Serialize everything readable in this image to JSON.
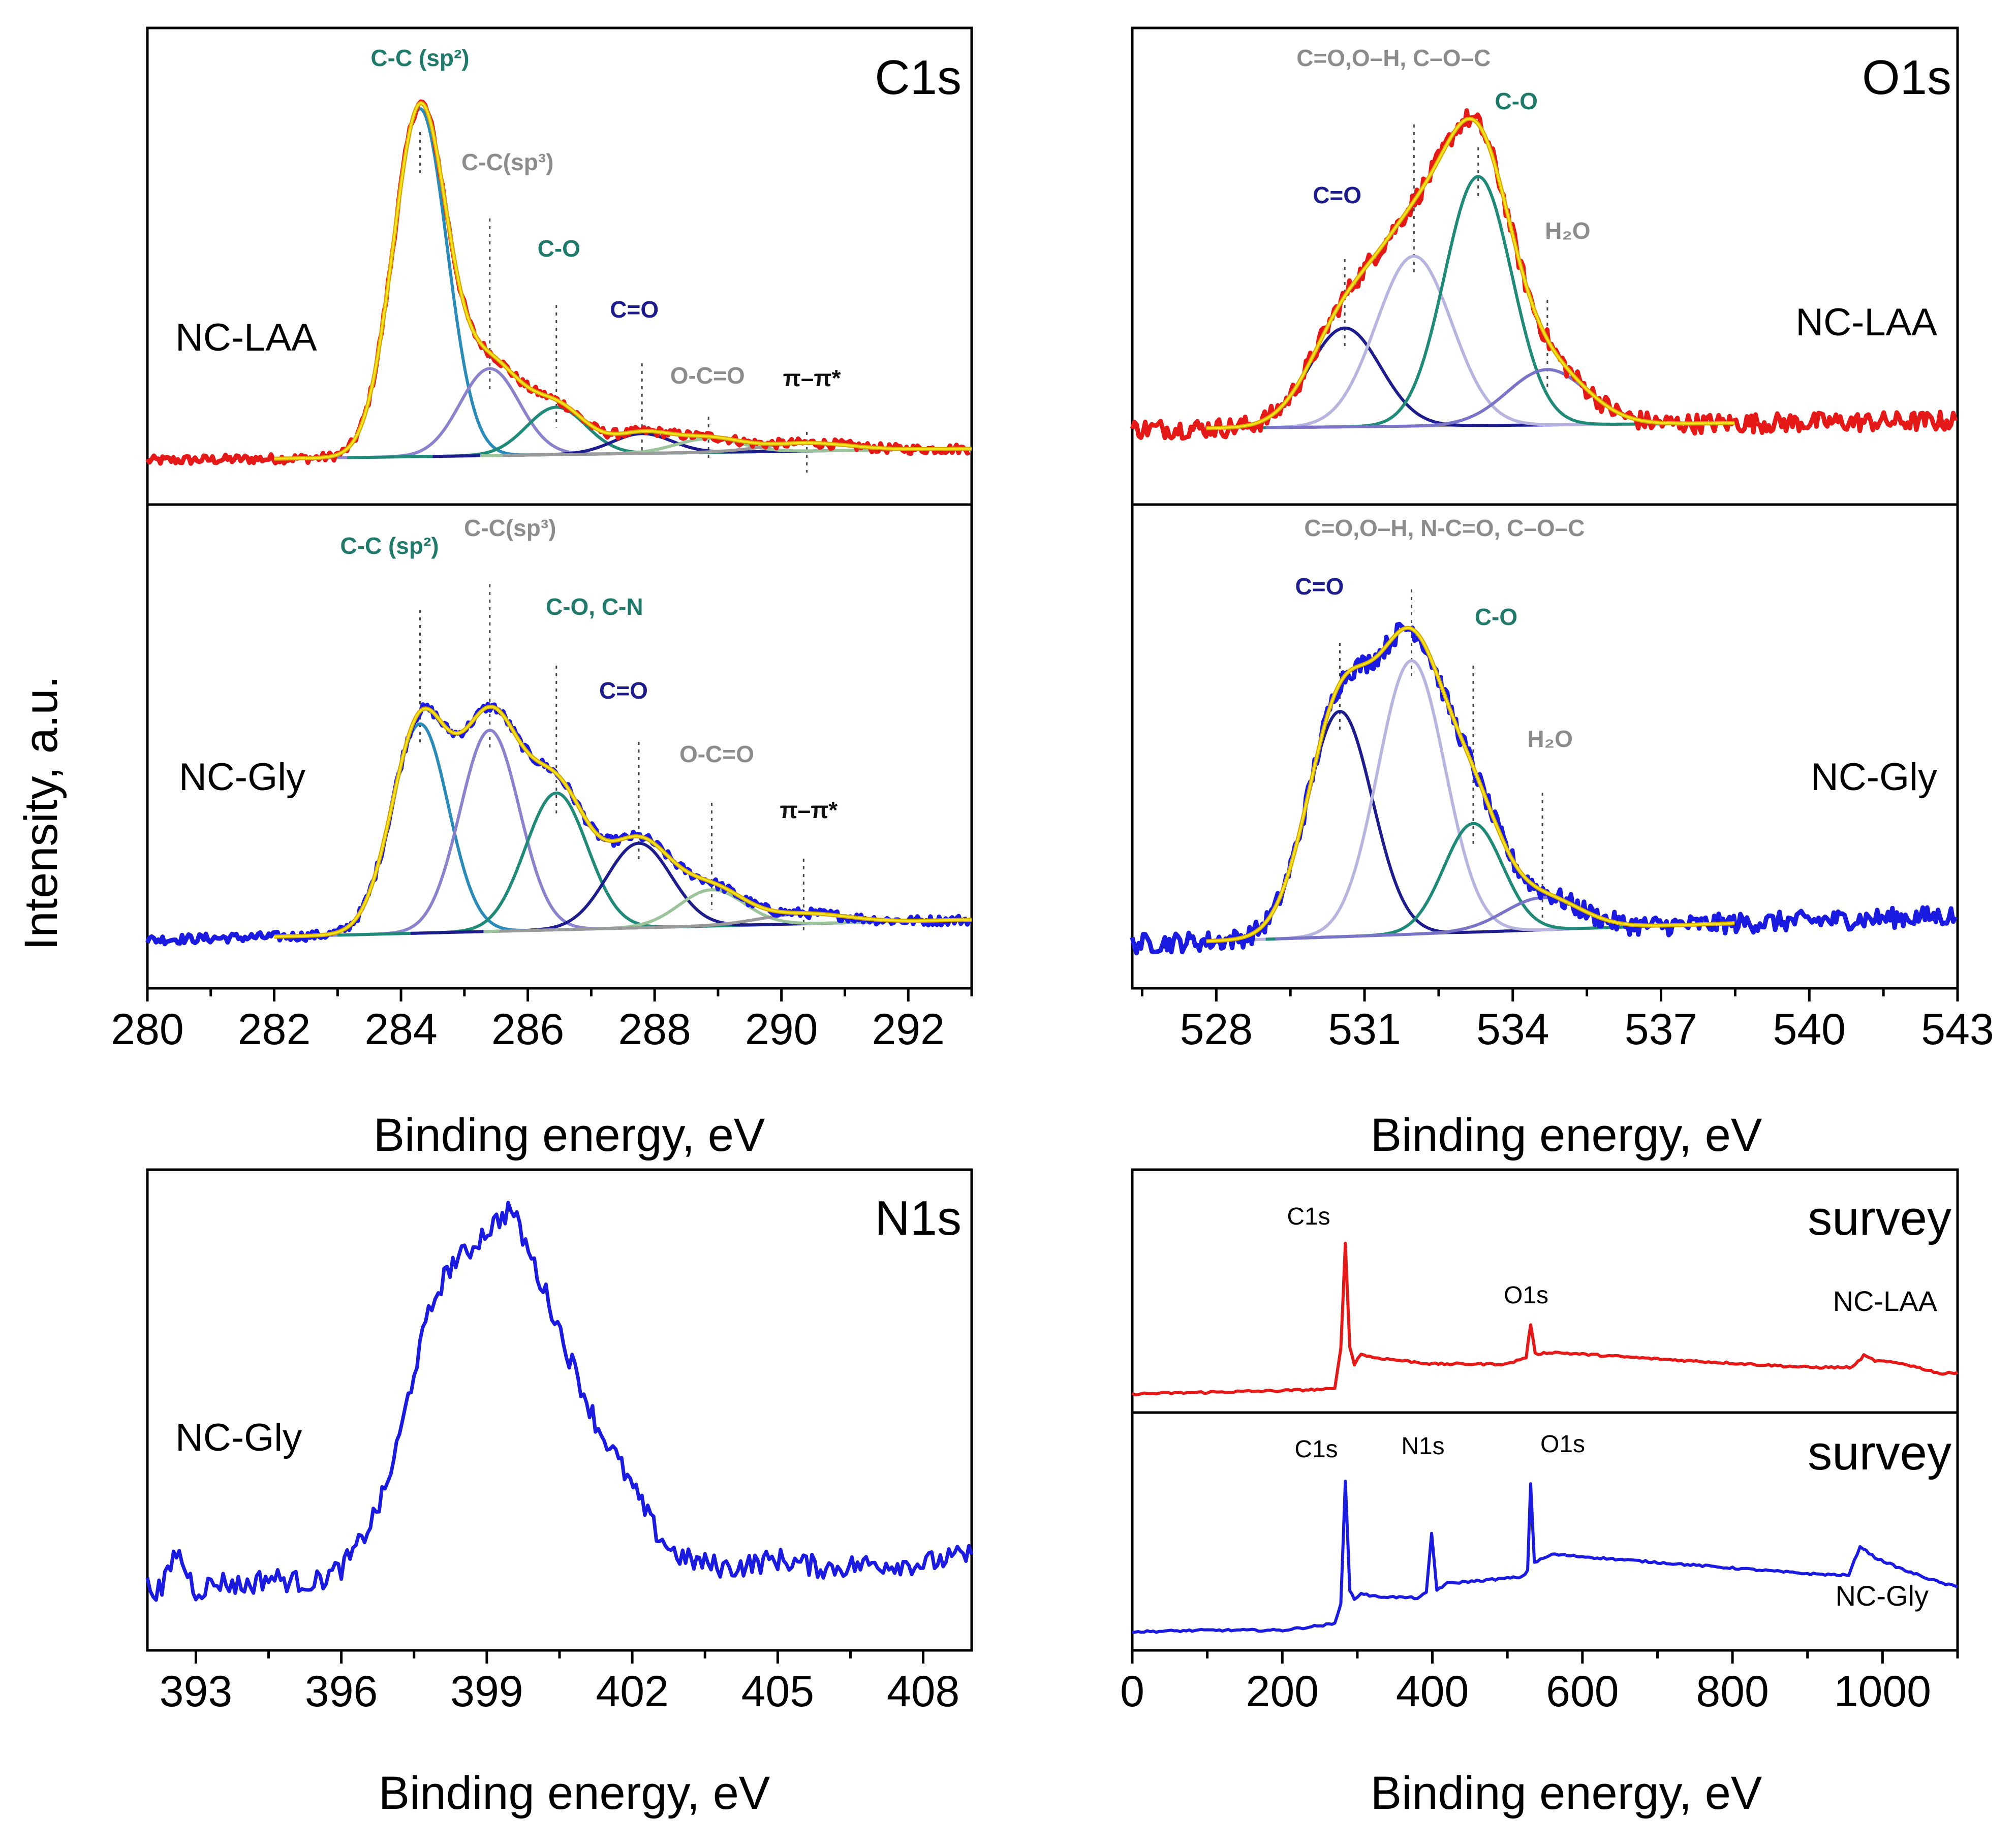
{
  "figure": {
    "ylabel": "Intensity, a.u.",
    "colors": {
      "laa": "#e61919",
      "gly": "#1a1ae0",
      "fit": "#f2e21c",
      "fit_outline": "#d6a400",
      "green_label": "#1f7a6a",
      "navy_label": "#1c1c8c",
      "gray_label": "#8c8c8c",
      "black_label": "#111111"
    }
  },
  "chart_data": [
    {
      "id": "c1s",
      "type": "line",
      "title": "C1s",
      "xlabel": "Binding energy, eV",
      "xlim": [
        280,
        293
      ],
      "xticks": [
        280,
        282,
        284,
        286,
        288,
        290,
        292
      ],
      "subplots": [
        {
          "sample": "NC-LAA",
          "data_color": "laa",
          "background": {
            "start": [
              280,
              0.06
            ],
            "end": [
              293,
              0.09
            ]
          },
          "components": [
            {
              "label": "C-C (sp²)",
              "center": 284.3,
              "fwhm": 1.0,
              "amplitude": 0.88,
              "color": "#2a8ab8",
              "label_color": "green_label"
            },
            {
              "label": "C-C(sp³)",
              "center": 285.4,
              "fwhm": 1.1,
              "amplitude": 0.22,
              "color": "#8a82cc",
              "label_color": "gray_label"
            },
            {
              "label": "C-O",
              "center": 286.45,
              "fwhm": 1.1,
              "amplitude": 0.12,
              "color": "#1f8a78",
              "label_color": "green_label"
            },
            {
              "label": "C=O",
              "center": 287.8,
              "fwhm": 1.1,
              "amplitude": 0.05,
              "color": "#1c1c8c",
              "label_color": "navy_label"
            },
            {
              "label": "O-C=O",
              "center": 288.85,
              "fwhm": 1.2,
              "amplitude": 0.035,
              "color": "#9cc49a",
              "label_color": "gray_label"
            },
            {
              "label": "π–π*",
              "center": 290.4,
              "fwhm": 1.6,
              "amplitude": 0.02,
              "color": "#9a9a9a",
              "label_color": "black_label"
            }
          ]
        },
        {
          "sample": "NC-Gly",
          "data_color": "gly",
          "background": {
            "start": [
              280,
              0.07
            ],
            "end": [
              293,
              0.12
            ]
          },
          "components": [
            {
              "label": "C-C (sp²)",
              "center": 284.3,
              "fwhm": 1.05,
              "amplitude": 0.52,
              "color": "#2a8ab8",
              "label_color": "green_label"
            },
            {
              "label": "C-C(sp³)",
              "center": 285.4,
              "fwhm": 1.1,
              "amplitude": 0.5,
              "color": "#8a82cc",
              "label_color": "gray_label"
            },
            {
              "label": "C-O, C-N",
              "center": 286.45,
              "fwhm": 1.15,
              "amplitude": 0.34,
              "color": "#1f8a78",
              "label_color": "green_label"
            },
            {
              "label": "C=O",
              "center": 287.75,
              "fwhm": 1.2,
              "amplitude": 0.21,
              "color": "#1c1c8c",
              "label_color": "navy_label"
            },
            {
              "label": "O-C=O",
              "center": 288.9,
              "fwhm": 1.2,
              "amplitude": 0.09,
              "color": "#9cc49a",
              "label_color": "gray_label"
            },
            {
              "label": "π–π*",
              "center": 290.35,
              "fwhm": 1.6,
              "amplitude": 0.025,
              "color": "#9a9a9a",
              "label_color": "black_label"
            }
          ]
        }
      ]
    },
    {
      "id": "o1s",
      "type": "line",
      "title": "O1s",
      "xlabel": "Binding energy, eV",
      "xlim": [
        526.3,
        543
      ],
      "xticks": [
        528,
        531,
        534,
        537,
        540,
        543
      ],
      "subplots": [
        {
          "sample": "NC-LAA",
          "data_color": "laa",
          "background": {
            "start": [
              526.3,
              0.14
            ],
            "end": [
              543,
              0.16
            ]
          },
          "components": [
            {
              "label": "C=O",
              "center": 530.6,
              "fwhm": 1.7,
              "amplitude": 0.25,
              "color": "#1c1c8c",
              "label_color": "navy_label"
            },
            {
              "label": "C=O,O–H, C–O–C",
              "center": 532.0,
              "fwhm": 1.8,
              "amplitude": 0.43,
              "color": "#b8b4e0",
              "label_color": "gray_label"
            },
            {
              "label": "C-O",
              "center": 533.3,
              "fwhm": 1.6,
              "amplitude": 0.63,
              "color": "#1f8a78",
              "label_color": "green_label"
            },
            {
              "label": "H₂O",
              "center": 534.7,
              "fwhm": 1.9,
              "amplitude": 0.14,
              "color": "#7a74c8",
              "label_color": "gray_label"
            }
          ]
        },
        {
          "sample": "NC-Gly",
          "data_color": "gly",
          "background": {
            "start": [
              526.3,
              0.06
            ],
            "end": [
              543,
              0.13
            ]
          },
          "components": [
            {
              "label": "C=O",
              "center": 530.5,
              "fwhm": 1.55,
              "amplitude": 0.56,
              "color": "#1c1c8c",
              "label_color": "navy_label"
            },
            {
              "label": "C=O,O–H, N-C=O, C–O–C",
              "center": 531.95,
              "fwhm": 1.6,
              "amplitude": 0.68,
              "color": "#b8b4e0",
              "label_color": "gray_label"
            },
            {
              "label": "C-O",
              "center": 533.2,
              "fwhm": 1.4,
              "amplitude": 0.27,
              "color": "#1f8a78",
              "label_color": "green_label"
            },
            {
              "label": "H₂O",
              "center": 534.6,
              "fwhm": 1.8,
              "amplitude": 0.08,
              "color": "#7a74c8",
              "label_color": "gray_label"
            }
          ]
        }
      ]
    },
    {
      "id": "n1s",
      "type": "line",
      "title": "N1s",
      "xlabel": "Binding energy, eV",
      "xlim": [
        392,
        409
      ],
      "xticks": [
        393,
        396,
        399,
        402,
        405,
        408
      ],
      "sample": "NC-Gly",
      "data_color": "gly",
      "series": [
        {
          "name": "NC-Gly",
          "x": [
            392.0,
            392.3,
            392.6,
            393.0,
            393.5,
            394.0,
            394.5,
            395.0,
            395.5,
            396.0,
            396.3,
            396.6,
            396.9,
            397.2,
            397.5,
            397.8,
            398.0,
            398.3,
            398.6,
            398.9,
            399.2,
            399.5,
            399.8,
            400.1,
            400.4,
            400.7,
            401.0,
            401.3,
            401.6,
            401.9,
            402.2,
            402.5,
            402.8,
            403.1,
            403.5,
            404.0,
            405.0,
            406.0,
            407.0,
            408.0,
            409.0
          ],
          "y": [
            0.12,
            0.11,
            0.2,
            0.11,
            0.13,
            0.12,
            0.14,
            0.13,
            0.13,
            0.16,
            0.2,
            0.26,
            0.33,
            0.45,
            0.6,
            0.72,
            0.78,
            0.84,
            0.86,
            0.9,
            0.93,
            0.96,
            0.88,
            0.8,
            0.72,
            0.63,
            0.55,
            0.47,
            0.42,
            0.36,
            0.3,
            0.24,
            0.2,
            0.18,
            0.17,
            0.16,
            0.18,
            0.16,
            0.17,
            0.17,
            0.19
          ]
        }
      ]
    },
    {
      "id": "survey",
      "type": "line",
      "title": "survey",
      "xlabel": "Binding energy, eV",
      "xlim": [
        0,
        1100
      ],
      "xticks": [
        0,
        200,
        400,
        600,
        800,
        1000
      ],
      "subplots": [
        {
          "sample": "NC-LAA",
          "data_color": "laa",
          "series": [
            {
              "name": "NC-LAA",
              "x": [
                0,
                100,
                200,
                270,
                278,
                284,
                290,
                296,
                305,
                320,
                400,
                500,
                525,
                531,
                537,
                560,
                700,
                900,
                960,
                975,
                990,
                1030,
                1080,
                1100
              ],
              "y": [
                0.02,
                0.03,
                0.04,
                0.05,
                0.3,
                0.92,
                0.3,
                0.2,
                0.26,
                0.24,
                0.2,
                0.2,
                0.24,
                0.44,
                0.26,
                0.27,
                0.23,
                0.18,
                0.18,
                0.25,
                0.22,
                0.2,
                0.14,
                0.15
              ]
            }
          ],
          "peaks": [
            {
              "label": "C1s",
              "x": 284
            },
            {
              "label": "O1s",
              "x": 531
            }
          ]
        },
        {
          "sample": "NC-Gly",
          "data_color": "gly",
          "series": [
            {
              "name": "NC-Gly",
              "x": [
                0,
                100,
                200,
                270,
                278,
                284,
                290,
                296,
                305,
                320,
                380,
                392,
                399,
                406,
                420,
                520,
                527,
                531,
                536,
                560,
                700,
                900,
                955,
                970,
                990,
                1030,
                1080,
                1100
              ],
              "y": [
                0.02,
                0.03,
                0.03,
                0.07,
                0.2,
                0.95,
                0.28,
                0.22,
                0.26,
                0.24,
                0.23,
                0.26,
                0.63,
                0.28,
                0.32,
                0.36,
                0.4,
                0.94,
                0.45,
                0.5,
                0.45,
                0.38,
                0.37,
                0.55,
                0.48,
                0.4,
                0.32,
                0.3
              ]
            }
          ],
          "peaks": [
            {
              "label": "C1s",
              "x": 284
            },
            {
              "label": "N1s",
              "x": 399
            },
            {
              "label": "O1s",
              "x": 531
            }
          ]
        }
      ]
    }
  ]
}
